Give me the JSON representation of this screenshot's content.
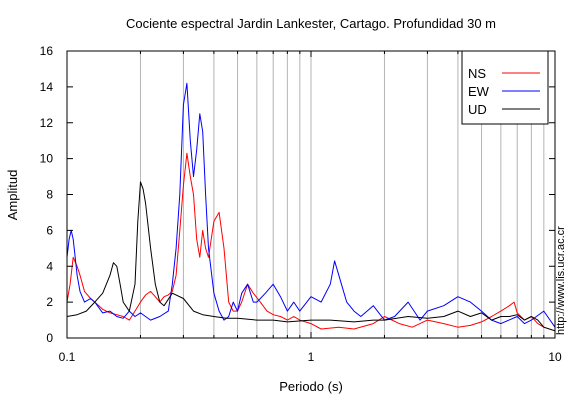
{
  "chart_data": {
    "type": "line",
    "title": "Cociente espectral Jardin Lankester, Cartago. Profundidad 30 m",
    "xlabel": "Periodo (s)",
    "ylabel": "Amplitud",
    "xscale": "log",
    "xlim": [
      0.1,
      10
    ],
    "ylim": [
      0,
      16
    ],
    "x_tick_labels": [
      "0.1",
      "1",
      "10"
    ],
    "y_tick_labels": [
      "0",
      "2",
      "4",
      "6",
      "8",
      "10",
      "12",
      "14",
      "16"
    ],
    "y_ticks": [
      0,
      2,
      4,
      6,
      8,
      10,
      12,
      14,
      16
    ],
    "grid": "vertical",
    "legend_position": "top-right",
    "series": [
      {
        "name": "NS",
        "color": "#ff0000",
        "x": [
          0.1,
          0.103,
          0.106,
          0.11,
          0.113,
          0.118,
          0.125,
          0.13,
          0.14,
          0.15,
          0.16,
          0.17,
          0.18,
          0.19,
          0.2,
          0.21,
          0.22,
          0.23,
          0.24,
          0.25,
          0.26,
          0.27,
          0.28,
          0.29,
          0.3,
          0.31,
          0.32,
          0.33,
          0.34,
          0.35,
          0.36,
          0.37,
          0.38,
          0.39,
          0.4,
          0.42,
          0.44,
          0.46,
          0.48,
          0.5,
          0.52,
          0.55,
          0.58,
          0.62,
          0.66,
          0.7,
          0.75,
          0.8,
          0.85,
          0.9,
          1.0,
          1.1,
          1.3,
          1.5,
          1.8,
          2.0,
          2.3,
          2.6,
          3.0,
          3.5,
          4.0,
          4.5,
          5.0,
          5.5,
          6.0,
          6.5,
          6.8,
          7.0,
          7.5,
          8.0,
          8.5,
          9.0,
          10.0
        ],
        "y": [
          2.0,
          3.0,
          4.5,
          4.0,
          3.5,
          2.6,
          2.2,
          2.0,
          1.6,
          1.4,
          1.3,
          1.2,
          1.0,
          1.5,
          2.0,
          2.4,
          2.6,
          2.3,
          2.0,
          2.3,
          2.4,
          2.6,
          3.5,
          6.0,
          8.5,
          10.3,
          9.0,
          8.0,
          5.5,
          4.5,
          6.0,
          5.0,
          4.5,
          5.5,
          6.5,
          7.0,
          5.0,
          2.0,
          1.5,
          1.5,
          2.0,
          3.0,
          2.5,
          2.0,
          1.5,
          1.3,
          1.2,
          1.0,
          1.2,
          1.0,
          0.8,
          0.5,
          0.6,
          0.5,
          0.8,
          1.2,
          0.8,
          0.6,
          1.0,
          0.8,
          0.6,
          0.7,
          0.9,
          1.2,
          1.5,
          1.8,
          2.0,
          1.4,
          1.0,
          1.2,
          0.8,
          0.6,
          0.4
        ]
      },
      {
        "name": "EW",
        "color": "#0000ff",
        "x": [
          0.1,
          0.102,
          0.104,
          0.106,
          0.108,
          0.11,
          0.113,
          0.118,
          0.125,
          0.13,
          0.14,
          0.15,
          0.16,
          0.17,
          0.18,
          0.19,
          0.2,
          0.22,
          0.24,
          0.26,
          0.27,
          0.28,
          0.29,
          0.3,
          0.31,
          0.32,
          0.33,
          0.34,
          0.35,
          0.36,
          0.37,
          0.38,
          0.4,
          0.42,
          0.44,
          0.46,
          0.48,
          0.5,
          0.52,
          0.55,
          0.58,
          0.6,
          0.65,
          0.7,
          0.75,
          0.8,
          0.85,
          0.9,
          1.0,
          1.1,
          1.2,
          1.25,
          1.3,
          1.4,
          1.5,
          1.6,
          1.8,
          2.0,
          2.2,
          2.5,
          2.8,
          3.0,
          3.5,
          4.0,
          4.5,
          5.0,
          5.5,
          6.0,
          7.0,
          7.5,
          8.0,
          9.0,
          10.0
        ],
        "y": [
          4.5,
          5.5,
          6.0,
          5.5,
          4.5,
          3.5,
          2.6,
          2.0,
          2.2,
          2.0,
          1.4,
          1.5,
          1.2,
          1.1,
          1.5,
          1.2,
          1.4,
          1.0,
          1.2,
          1.5,
          3.0,
          5.0,
          8.0,
          13.0,
          14.2,
          11.0,
          9.0,
          10.5,
          12.5,
          11.5,
          8.0,
          5.0,
          2.5,
          1.5,
          1.0,
          1.2,
          2.0,
          1.5,
          2.5,
          3.0,
          2.0,
          2.0,
          2.5,
          3.0,
          2.3,
          1.5,
          2.0,
          1.5,
          2.3,
          2.0,
          3.0,
          4.3,
          3.5,
          2.0,
          1.5,
          1.2,
          1.8,
          1.0,
          1.2,
          2.0,
          1.0,
          1.5,
          1.8,
          2.3,
          2.0,
          1.5,
          1.0,
          0.8,
          1.2,
          0.8,
          1.0,
          1.5,
          0.6
        ]
      },
      {
        "name": "UD",
        "color": "#000000",
        "x": [
          0.1,
          0.11,
          0.12,
          0.13,
          0.14,
          0.15,
          0.155,
          0.16,
          0.165,
          0.17,
          0.18,
          0.19,
          0.195,
          0.2,
          0.205,
          0.21,
          0.22,
          0.23,
          0.24,
          0.25,
          0.27,
          0.3,
          0.33,
          0.36,
          0.4,
          0.45,
          0.5,
          0.6,
          0.7,
          0.8,
          1.0,
          1.2,
          1.5,
          1.8,
          2.0,
          2.5,
          3.0,
          3.5,
          4.0,
          4.5,
          5.0,
          5.5,
          6.0,
          6.5,
          7.0,
          7.5,
          8.0,
          8.5,
          9.0,
          10.0
        ],
        "y": [
          1.2,
          1.3,
          1.5,
          2.0,
          2.5,
          3.5,
          4.2,
          4.0,
          3.0,
          2.0,
          1.5,
          3.0,
          6.5,
          8.7,
          8.3,
          7.5,
          5.0,
          3.0,
          2.0,
          1.8,
          2.5,
          2.2,
          1.5,
          1.3,
          1.2,
          1.1,
          1.1,
          1.0,
          1.0,
          0.9,
          1.0,
          1.0,
          0.9,
          1.0,
          1.0,
          1.2,
          1.1,
          1.2,
          1.5,
          1.2,
          1.4,
          1.0,
          1.2,
          1.2,
          1.3,
          1.0,
          1.2,
          1.0,
          0.6,
          0.4
        ]
      }
    ]
  },
  "side_url": "http://www.lis.ucr.ac.cr"
}
